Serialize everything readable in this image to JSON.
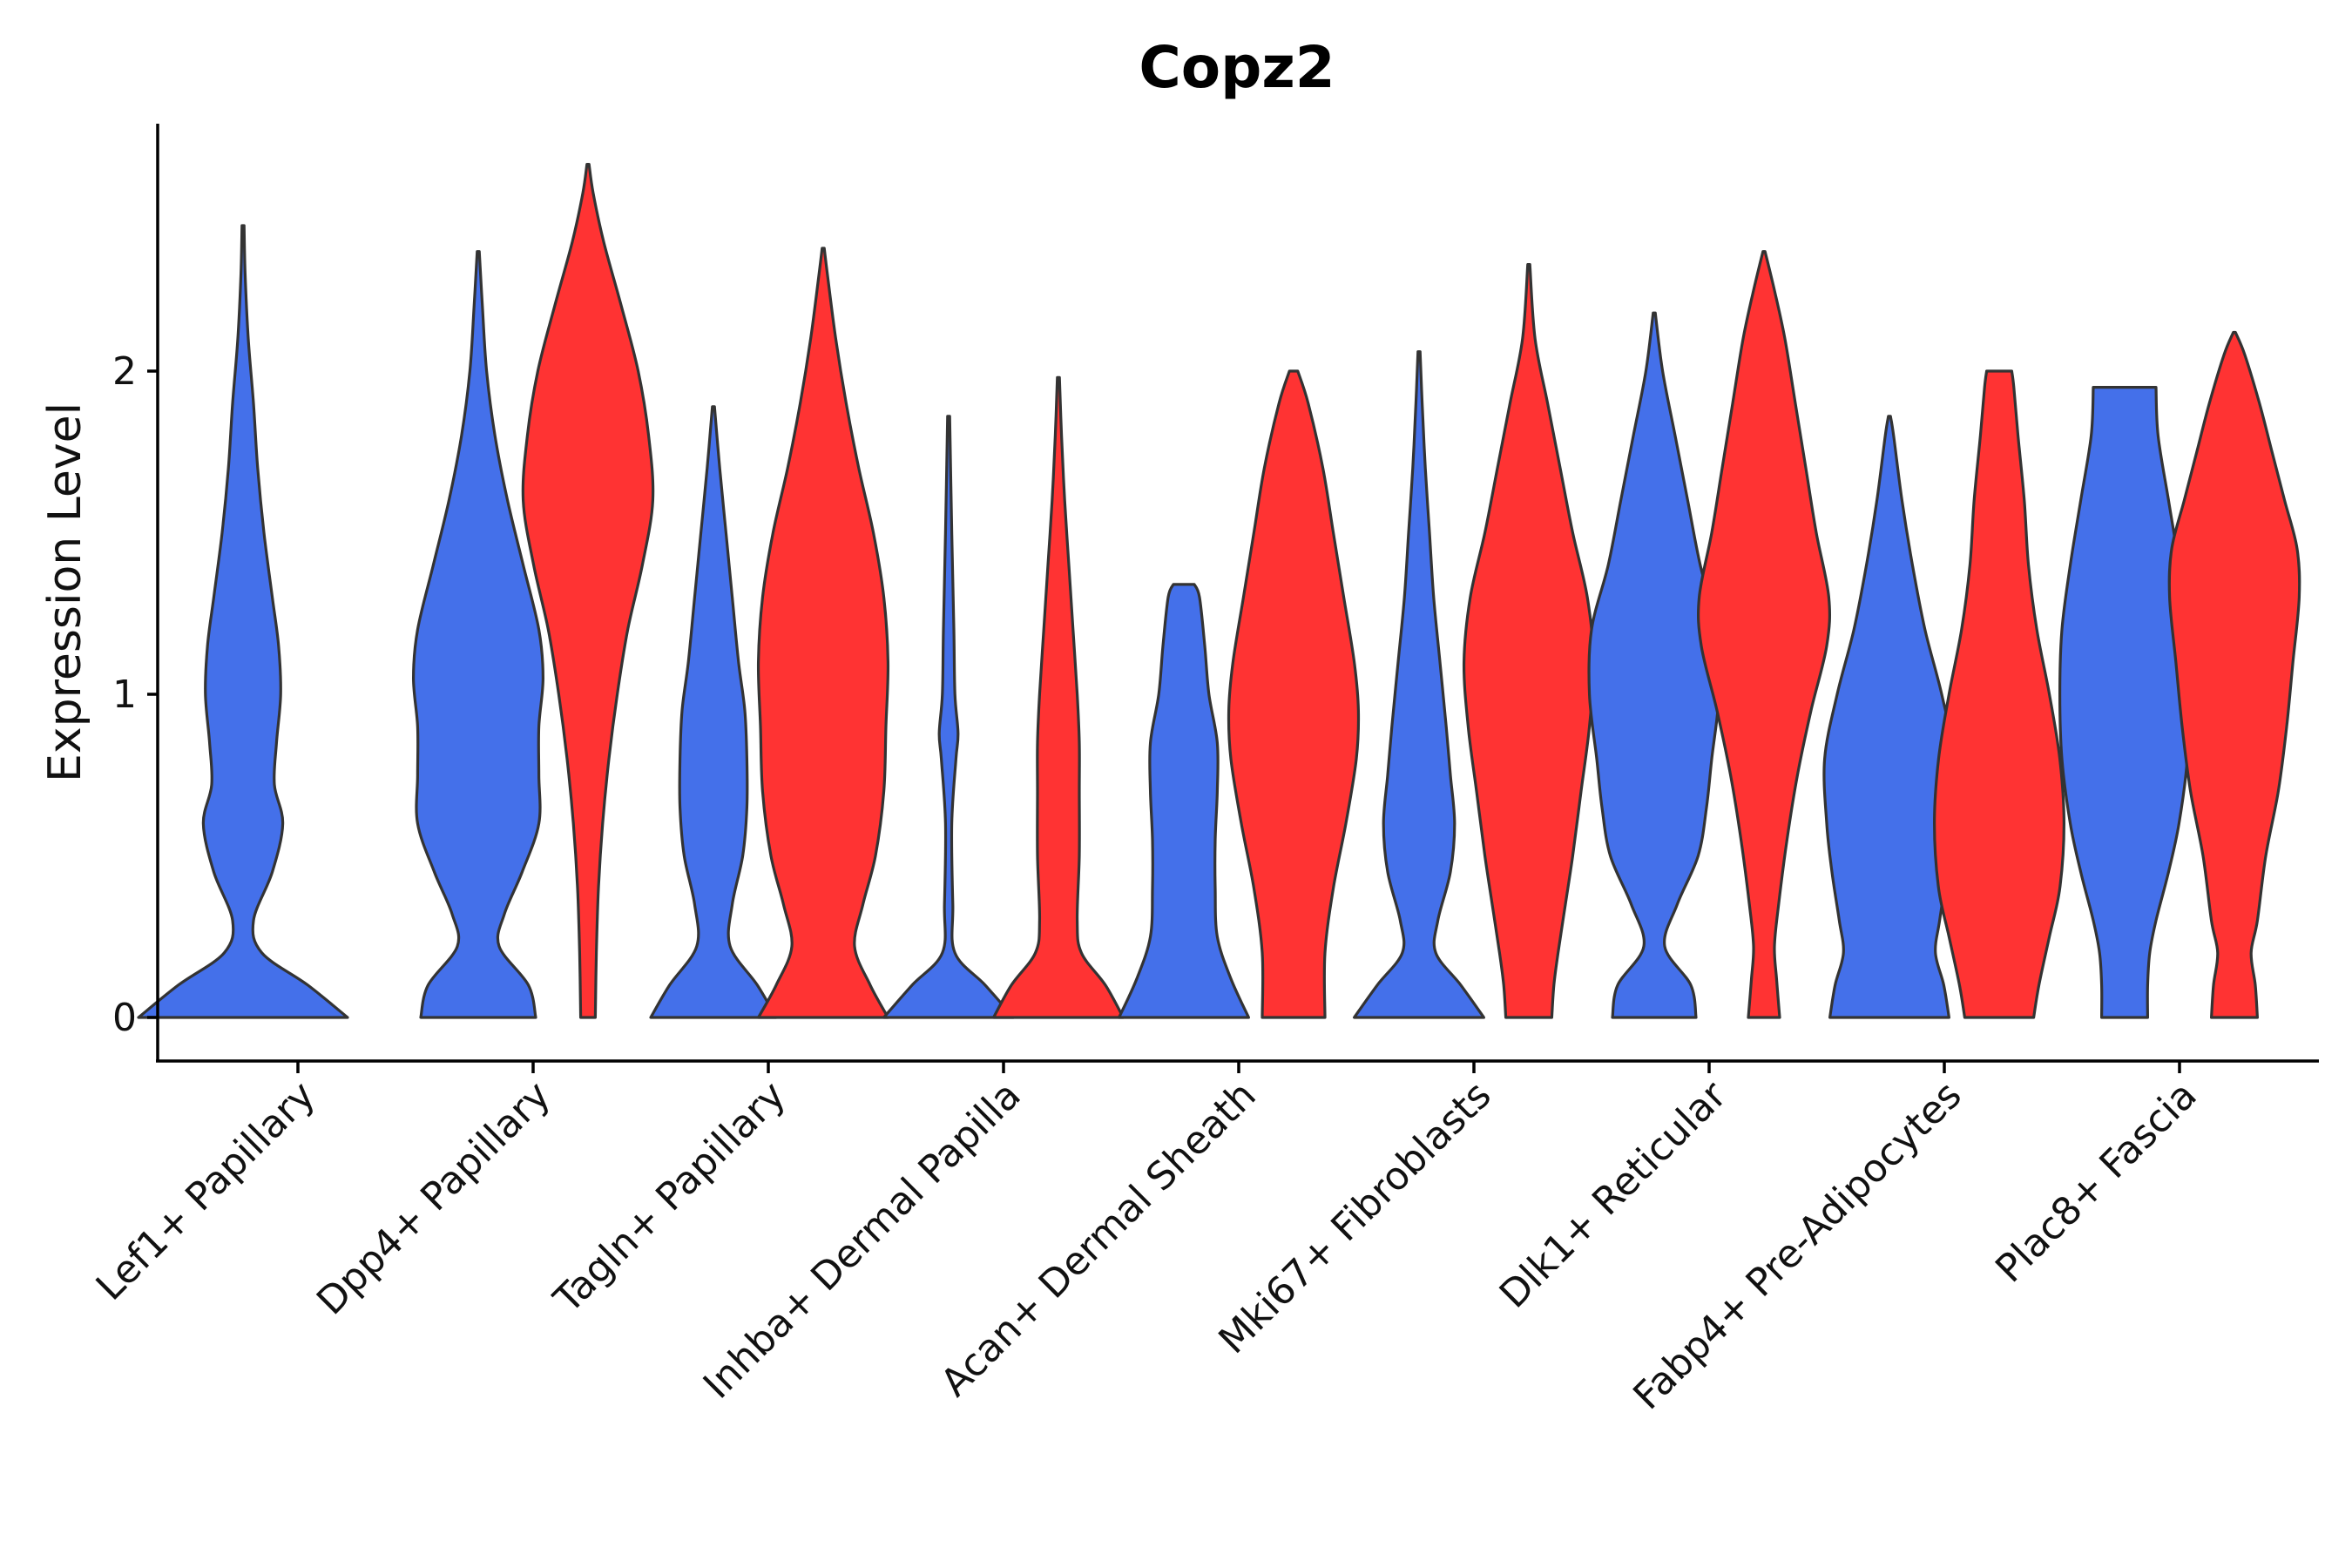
{
  "chart_data": {
    "type": "violin",
    "title": "Copz2",
    "xlabel": "",
    "ylabel": "Expression Level",
    "ylim": [
      -0.13,
      2.78
    ],
    "yticks": [
      0,
      1,
      2
    ],
    "grid": false,
    "legend": "none",
    "colors": {
      "blue": "#4470EA",
      "red": "#FF3333",
      "outline": "#333333"
    },
    "categories": [
      "Lef1+ Papillary",
      "Dpp4+ Papillary",
      "Tagln+ Papillary",
      "Inhba+ Dermal Papilla",
      "Acan+ Dermal Sheath",
      "Mki67+ Fibroblasts",
      "Dlk1+ Reticular",
      "Fabp4+ Pre-Adipocytes",
      "Plac8+ Fascia"
    ],
    "series": [
      {
        "name": "blue",
        "color": "#4470EA",
        "max_values": [
          2.45,
          2.37,
          1.89,
          1.86,
          1.34,
          2.06,
          2.18,
          1.86,
          1.95
        ],
        "profiles": [
          [
            [
              0,
              1.0
            ],
            [
              0.1,
              0.62
            ],
            [
              0.2,
              0.18
            ],
            [
              0.3,
              0.1
            ],
            [
              0.45,
              0.28
            ],
            [
              0.6,
              0.38
            ],
            [
              0.72,
              0.3
            ],
            [
              0.85,
              0.32
            ],
            [
              1.0,
              0.36
            ],
            [
              1.15,
              0.34
            ],
            [
              1.3,
              0.28
            ],
            [
              1.5,
              0.2
            ],
            [
              1.7,
              0.14
            ],
            [
              1.9,
              0.1
            ],
            [
              2.1,
              0.05
            ],
            [
              2.3,
              0.02
            ],
            [
              2.45,
              0.01
            ]
          ],
          [
            [
              0,
              0.55
            ],
            [
              0.1,
              0.48
            ],
            [
              0.22,
              0.2
            ],
            [
              0.32,
              0.25
            ],
            [
              0.45,
              0.42
            ],
            [
              0.6,
              0.58
            ],
            [
              0.75,
              0.58
            ],
            [
              0.9,
              0.58
            ],
            [
              1.05,
              0.62
            ],
            [
              1.2,
              0.58
            ],
            [
              1.4,
              0.43
            ],
            [
              1.6,
              0.28
            ],
            [
              1.8,
              0.16
            ],
            [
              2.0,
              0.08
            ],
            [
              2.2,
              0.04
            ],
            [
              2.37,
              0.01
            ]
          ],
          [
            [
              0,
              0.6
            ],
            [
              0.1,
              0.42
            ],
            [
              0.22,
              0.16
            ],
            [
              0.35,
              0.18
            ],
            [
              0.5,
              0.28
            ],
            [
              0.65,
              0.32
            ],
            [
              0.8,
              0.32
            ],
            [
              0.95,
              0.3
            ],
            [
              1.1,
              0.24
            ],
            [
              1.3,
              0.18
            ],
            [
              1.5,
              0.12
            ],
            [
              1.7,
              0.06
            ],
            [
              1.89,
              0.01
            ]
          ],
          [
            [
              0,
              0.62
            ],
            [
              0.1,
              0.35
            ],
            [
              0.2,
              0.06
            ],
            [
              0.35,
              0.04
            ],
            [
              0.6,
              0.03
            ],
            [
              0.8,
              0.07
            ],
            [
              0.88,
              0.09
            ],
            [
              1.0,
              0.06
            ],
            [
              1.2,
              0.05
            ],
            [
              1.5,
              0.03
            ],
            [
              1.86,
              0.01
            ]
          ],
          [
            [
              0,
              0.62
            ],
            [
              0.12,
              0.45
            ],
            [
              0.25,
              0.32
            ],
            [
              0.4,
              0.3
            ],
            [
              0.55,
              0.3
            ],
            [
              0.7,
              0.32
            ],
            [
              0.85,
              0.32
            ],
            [
              1.0,
              0.24
            ],
            [
              1.15,
              0.2
            ],
            [
              1.3,
              0.15
            ],
            [
              1.34,
              0.1
            ]
          ],
          [
            [
              0,
              0.62
            ],
            [
              0.1,
              0.4
            ],
            [
              0.2,
              0.16
            ],
            [
              0.3,
              0.18
            ],
            [
              0.45,
              0.3
            ],
            [
              0.6,
              0.34
            ],
            [
              0.75,
              0.3
            ],
            [
              0.9,
              0.26
            ],
            [
              1.1,
              0.2
            ],
            [
              1.3,
              0.14
            ],
            [
              1.5,
              0.1
            ],
            [
              1.7,
              0.06
            ],
            [
              1.9,
              0.03
            ],
            [
              2.06,
              0.01
            ]
          ],
          [
            [
              0,
              0.4
            ],
            [
              0.1,
              0.35
            ],
            [
              0.22,
              0.1
            ],
            [
              0.35,
              0.22
            ],
            [
              0.5,
              0.42
            ],
            [
              0.65,
              0.5
            ],
            [
              0.8,
              0.55
            ],
            [
              1.0,
              0.62
            ],
            [
              1.2,
              0.6
            ],
            [
              1.4,
              0.44
            ],
            [
              1.6,
              0.32
            ],
            [
              1.8,
              0.2
            ],
            [
              2.0,
              0.08
            ],
            [
              2.18,
              0.01
            ]
          ],
          [
            [
              0,
              0.57
            ],
            [
              0.1,
              0.52
            ],
            [
              0.2,
              0.44
            ],
            [
              0.3,
              0.48
            ],
            [
              0.45,
              0.55
            ],
            [
              0.6,
              0.6
            ],
            [
              0.8,
              0.62
            ],
            [
              1.0,
              0.5
            ],
            [
              1.2,
              0.34
            ],
            [
              1.4,
              0.22
            ],
            [
              1.6,
              0.12
            ],
            [
              1.8,
              0.04
            ],
            [
              1.86,
              0.01
            ]
          ],
          [
            [
              0,
              0.22
            ],
            [
              0.1,
              0.22
            ],
            [
              0.2,
              0.24
            ],
            [
              0.3,
              0.3
            ],
            [
              0.45,
              0.42
            ],
            [
              0.6,
              0.52
            ],
            [
              0.8,
              0.6
            ],
            [
              1.0,
              0.62
            ],
            [
              1.2,
              0.6
            ],
            [
              1.4,
              0.52
            ],
            [
              1.6,
              0.42
            ],
            [
              1.8,
              0.32
            ],
            [
              1.95,
              0.3
            ]
          ]
        ]
      },
      {
        "name": "red",
        "color": "#FF3333",
        "max_values": [
          null,
          2.64,
          2.38,
          1.98,
          2.0,
          2.33,
          2.37,
          2.0,
          2.12
        ],
        "profiles": [
          [],
          [
            [
              0,
              0.07
            ],
            [
              0.2,
              0.08
            ],
            [
              0.4,
              0.1
            ],
            [
              0.6,
              0.14
            ],
            [
              0.8,
              0.2
            ],
            [
              1.0,
              0.28
            ],
            [
              1.2,
              0.38
            ],
            [
              1.4,
              0.52
            ],
            [
              1.6,
              0.62
            ],
            [
              1.8,
              0.58
            ],
            [
              2.0,
              0.48
            ],
            [
              2.2,
              0.32
            ],
            [
              2.4,
              0.15
            ],
            [
              2.55,
              0.05
            ],
            [
              2.64,
              0.01
            ]
          ],
          [
            [
              0,
              0.62
            ],
            [
              0.1,
              0.45
            ],
            [
              0.22,
              0.3
            ],
            [
              0.35,
              0.38
            ],
            [
              0.5,
              0.5
            ],
            [
              0.7,
              0.58
            ],
            [
              0.9,
              0.6
            ],
            [
              1.1,
              0.62
            ],
            [
              1.3,
              0.58
            ],
            [
              1.5,
              0.48
            ],
            [
              1.7,
              0.34
            ],
            [
              1.9,
              0.22
            ],
            [
              2.1,
              0.12
            ],
            [
              2.3,
              0.04
            ],
            [
              2.38,
              0.01
            ]
          ],
          [
            [
              0,
              0.62
            ],
            [
              0.1,
              0.45
            ],
            [
              0.2,
              0.22
            ],
            [
              0.3,
              0.18
            ],
            [
              0.5,
              0.2
            ],
            [
              0.7,
              0.2
            ],
            [
              0.85,
              0.2
            ],
            [
              1.0,
              0.18
            ],
            [
              1.2,
              0.14
            ],
            [
              1.4,
              0.1
            ],
            [
              1.6,
              0.06
            ],
            [
              1.8,
              0.03
            ],
            [
              1.98,
              0.01
            ]
          ],
          [
            [
              0,
              0.3
            ],
            [
              0.2,
              0.3
            ],
            [
              0.4,
              0.38
            ],
            [
              0.6,
              0.5
            ],
            [
              0.8,
              0.6
            ],
            [
              0.95,
              0.62
            ],
            [
              1.1,
              0.58
            ],
            [
              1.3,
              0.48
            ],
            [
              1.5,
              0.38
            ],
            [
              1.7,
              0.28
            ],
            [
              1.9,
              0.14
            ],
            [
              2.0,
              0.04
            ]
          ],
          [
            [
              0,
              0.22
            ],
            [
              0.1,
              0.24
            ],
            [
              0.2,
              0.28
            ],
            [
              0.35,
              0.35
            ],
            [
              0.5,
              0.42
            ],
            [
              0.7,
              0.5
            ],
            [
              0.9,
              0.58
            ],
            [
              1.1,
              0.62
            ],
            [
              1.3,
              0.56
            ],
            [
              1.5,
              0.42
            ],
            [
              1.7,
              0.3
            ],
            [
              1.9,
              0.18
            ],
            [
              2.1,
              0.06
            ],
            [
              2.33,
              0.01
            ]
          ],
          [
            [
              0,
              0.15
            ],
            [
              0.12,
              0.12
            ],
            [
              0.22,
              0.1
            ],
            [
              0.35,
              0.14
            ],
            [
              0.55,
              0.22
            ],
            [
              0.75,
              0.32
            ],
            [
              0.95,
              0.45
            ],
            [
              1.15,
              0.6
            ],
            [
              1.3,
              0.62
            ],
            [
              1.5,
              0.5
            ],
            [
              1.7,
              0.4
            ],
            [
              1.9,
              0.3
            ],
            [
              2.1,
              0.2
            ],
            [
              2.25,
              0.1
            ],
            [
              2.37,
              0.01
            ]
          ],
          [
            [
              0,
              0.33
            ],
            [
              0.1,
              0.38
            ],
            [
              0.25,
              0.48
            ],
            [
              0.4,
              0.58
            ],
            [
              0.6,
              0.62
            ],
            [
              0.8,
              0.58
            ],
            [
              1.0,
              0.48
            ],
            [
              1.2,
              0.36
            ],
            [
              1.4,
              0.28
            ],
            [
              1.6,
              0.24
            ],
            [
              1.8,
              0.18
            ],
            [
              1.95,
              0.14
            ],
            [
              2.0,
              0.12
            ]
          ],
          [
            [
              0,
              0.22
            ],
            [
              0.1,
              0.2
            ],
            [
              0.2,
              0.16
            ],
            [
              0.3,
              0.22
            ],
            [
              0.5,
              0.3
            ],
            [
              0.7,
              0.42
            ],
            [
              0.9,
              0.5
            ],
            [
              1.1,
              0.56
            ],
            [
              1.3,
              0.62
            ],
            [
              1.45,
              0.6
            ],
            [
              1.6,
              0.48
            ],
            [
              1.75,
              0.36
            ],
            [
              1.9,
              0.24
            ],
            [
              2.05,
              0.1
            ],
            [
              2.12,
              0.01
            ]
          ]
        ]
      }
    ]
  }
}
